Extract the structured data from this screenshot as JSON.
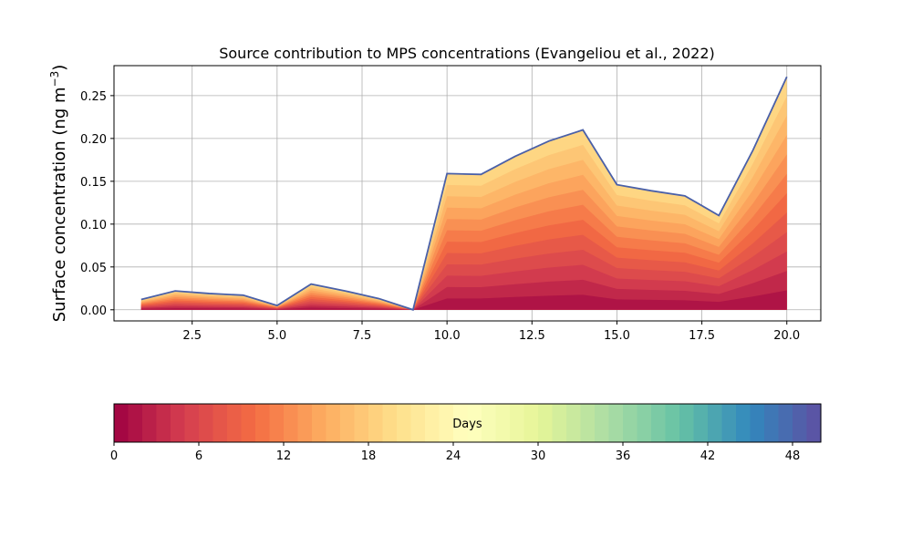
{
  "chart_data": {
    "type": "area",
    "title": "Source contribution to MPS concentrations (Evangeliou et al., 2022)",
    "ylabel_prefix": "Surface concentration (ng m",
    "ylabel_exp": "−3",
    "ylabel_suffix": ")",
    "xlabel": "",
    "xlim": [
      0.2,
      21.0
    ],
    "ylim": [
      -0.013,
      0.285
    ],
    "grid": true,
    "x_ticks": [
      2.5,
      5.0,
      7.5,
      10.0,
      12.5,
      15.0,
      17.5,
      20.0
    ],
    "x_tick_labels": [
      "2.5",
      "5.0",
      "7.5",
      "10.0",
      "12.5",
      "15.0",
      "17.5",
      "20.0"
    ],
    "y_ticks": [
      0.0,
      0.05,
      0.1,
      0.15,
      0.2,
      0.25
    ],
    "y_tick_labels": [
      "0.00",
      "0.05",
      "0.10",
      "0.15",
      "0.20",
      "0.25"
    ],
    "x": [
      1,
      2,
      3,
      4,
      5,
      6,
      7,
      8,
      9,
      10,
      11,
      12,
      13,
      14,
      15,
      16,
      17,
      18,
      19,
      20
    ],
    "total": [
      0.012,
      0.022,
      0.019,
      0.017,
      0.005,
      0.03,
      0.022,
      0.013,
      0.0,
      0.159,
      0.158,
      0.179,
      0.197,
      0.21,
      0.146,
      0.139,
      0.133,
      0.11,
      0.186,
      0.272
    ],
    "total_line_color": "#4a60a8",
    "colormap": "Spectral",
    "colorbar": {
      "label": "Days",
      "min": 0,
      "max": 50,
      "ticks": [
        0,
        6,
        12,
        18,
        24,
        30,
        36,
        42,
        48
      ],
      "tick_labels": [
        "0",
        "6",
        "12",
        "18",
        "24",
        "30",
        "36",
        "42",
        "48"
      ],
      "colors": [
        "#9e0142",
        "#d53e4f",
        "#f46d43",
        "#fdae61",
        "#fee08b",
        "#ffffbf",
        "#e6f598",
        "#abdda4",
        "#66c2a5",
        "#3288bd",
        "#5e4fa2"
      ]
    }
  }
}
